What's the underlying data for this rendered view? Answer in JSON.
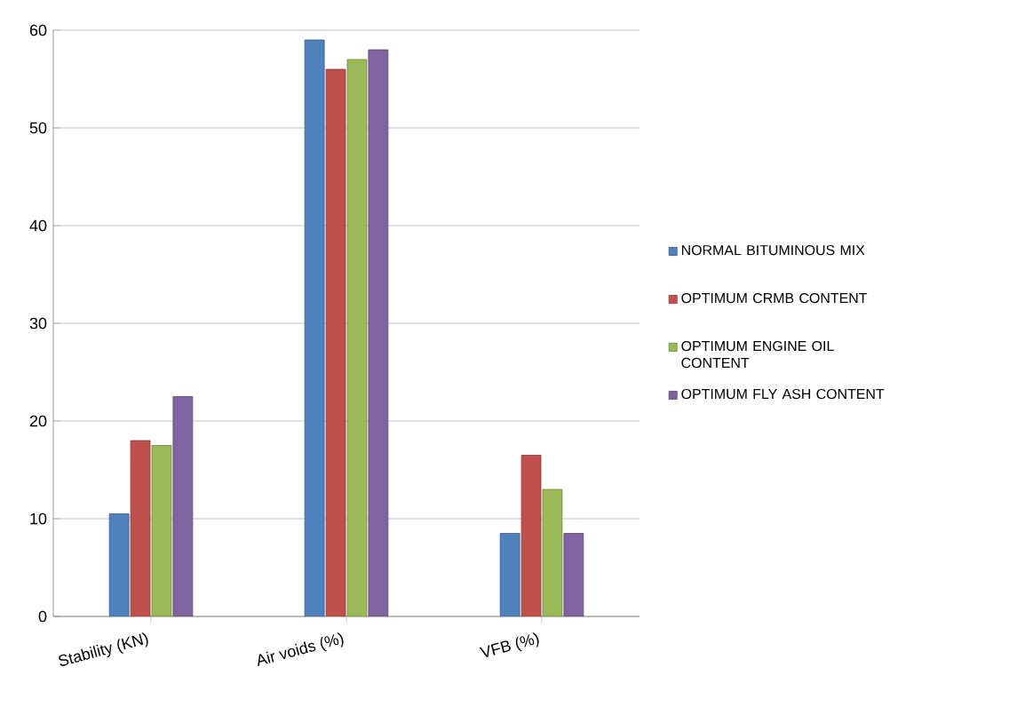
{
  "chart_data": {
    "type": "bar",
    "categories": [
      "Stability (KN)",
      "Air voids (%)",
      "VFB (%)"
    ],
    "series": [
      {
        "name": "NORMAL BITUMINOUS MIX",
        "color": "#4f81bd",
        "values": [
          10.5,
          59,
          8.5
        ]
      },
      {
        "name": "OPTIMUM CRMB CONTENT",
        "color": "#c0504d",
        "values": [
          18,
          56,
          16.5
        ]
      },
      {
        "name": "OPTIMUM ENGINE OIL CONTENT",
        "color": "#9bbb59",
        "values": [
          17.5,
          57,
          13
        ]
      },
      {
        "name": "OPTIMUM FLY ASH CONTENT",
        "color": "#8064a2",
        "values": [
          22.5,
          58,
          8.5
        ]
      }
    ],
    "ylim": [
      0,
      60
    ],
    "yticks": [
      0,
      10,
      20,
      30,
      40,
      50,
      60
    ],
    "grid": "y",
    "legend": "right"
  }
}
